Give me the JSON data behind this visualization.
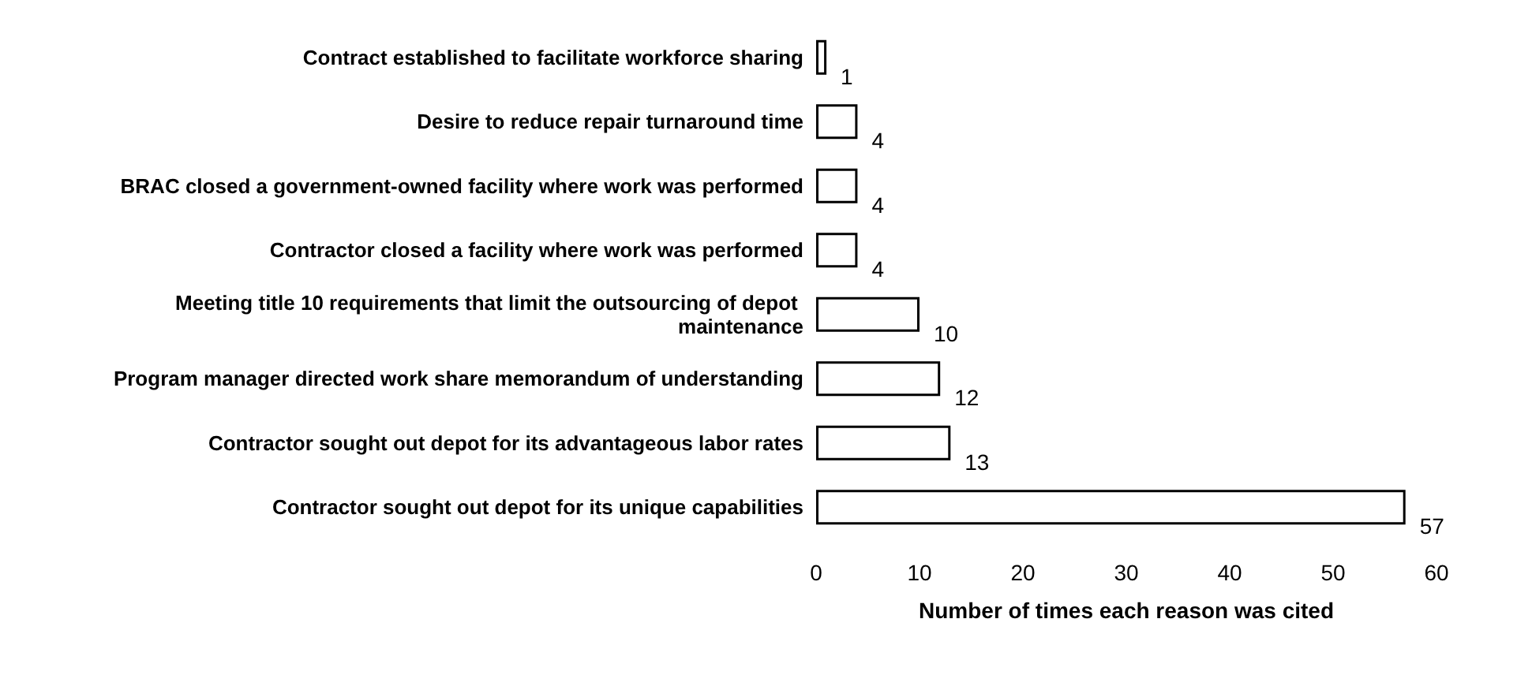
{
  "chart_data": {
    "type": "bar",
    "orientation": "horizontal",
    "xlabel": "Number of times each reason was cited",
    "categories": [
      "Contract established to facilitate workforce sharing",
      "Desire to reduce repair turnaround time",
      "BRAC closed a government-owned facility where work was performed",
      "Contractor closed a facility where work was performed",
      "Meeting title 10 requirements that limit the outsourcing of depot maintenance",
      "Program manager directed work share memorandum of understanding",
      "Contractor sought out depot for its advantageous labor rates",
      "Contractor sought out depot for its unique capabilities"
    ],
    "values": [
      1,
      4,
      4,
      4,
      10,
      12,
      13,
      57
    ],
    "color": "#ffffff",
    "data_labels": true,
    "xlim": [
      0,
      60
    ],
    "xticks": [
      0,
      10,
      20,
      30,
      40,
      50,
      60
    ],
    "grid": false
  }
}
